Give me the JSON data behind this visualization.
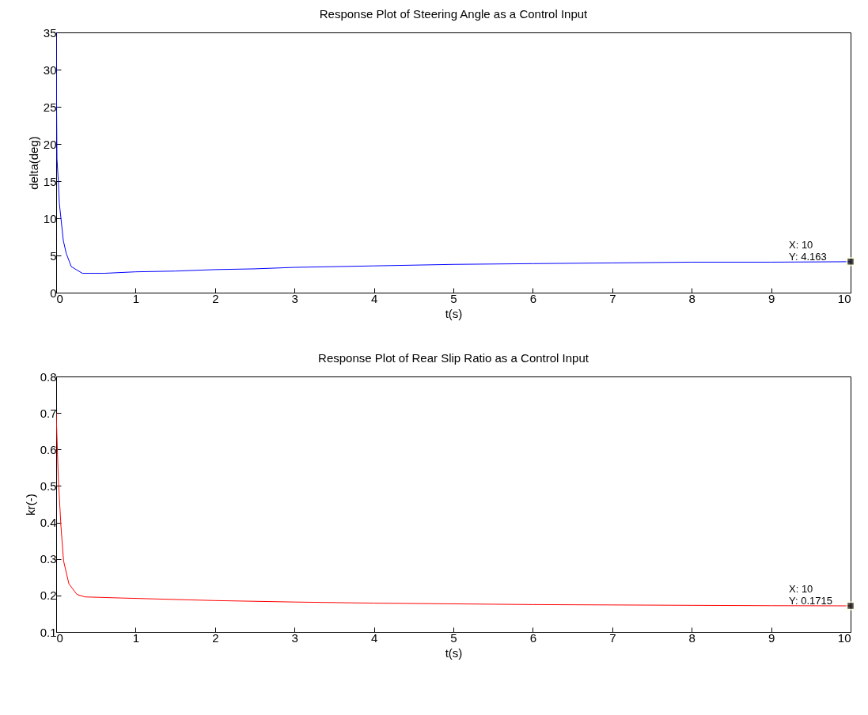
{
  "chart_data": [
    {
      "type": "line",
      "title": "Response Plot of Steering Angle as a Control Input",
      "xlabel": "t(s)",
      "ylabel": "delta(deg)",
      "x": [
        0,
        0.005,
        0.01,
        0.027,
        0.04,
        0.06,
        0.09,
        0.126,
        0.19,
        0.33,
        0.6,
        1,
        1.5,
        2,
        2.5,
        3,
        4,
        5,
        6,
        7,
        8,
        9,
        10
      ],
      "series": [
        {
          "color": "#0000ff",
          "values": [
            35,
            25,
            18,
            15,
            12,
            10,
            7,
            5.3,
            3.5,
            2.6,
            2.6,
            2.8,
            2.9,
            3.1,
            3.2,
            3.4,
            3.6,
            3.8,
            3.9,
            4.0,
            4.1,
            4.1,
            4.163
          ]
        }
      ],
      "xlim": [
        0,
        10
      ],
      "xticks": [
        0,
        1,
        2,
        3,
        4,
        5,
        6,
        7,
        8,
        9,
        10
      ],
      "ylim": [
        0,
        35
      ],
      "yticks": [
        0,
        5,
        10,
        15,
        20,
        25,
        30,
        35
      ],
      "annotations": [
        {
          "text": "X: 10\nY: 4.163",
          "x": 10,
          "y": 4.163
        }
      ],
      "grid": false
    },
    {
      "type": "line",
      "title": "Response Plot of Rear Slip Ratio as a Control Input",
      "xlabel": "t(s)",
      "ylabel": "kr(-)",
      "x": [
        0,
        0.027,
        0.06,
        0.093,
        0.16,
        0.26,
        0.36,
        0.82,
        2,
        3,
        4,
        5,
        6,
        7,
        8,
        9,
        10
      ],
      "series": [
        {
          "color": "#ff0000",
          "values": [
            0.7,
            0.52,
            0.39,
            0.295,
            0.232,
            0.203,
            0.196,
            0.193,
            0.186,
            0.182,
            0.179,
            0.177,
            0.175,
            0.174,
            0.173,
            0.172,
            0.1715
          ]
        }
      ],
      "xlim": [
        0,
        10
      ],
      "xticks": [
        0,
        1,
        2,
        3,
        4,
        5,
        6,
        7,
        8,
        9,
        10
      ],
      "ylim": [
        0.1,
        0.8
      ],
      "yticks": [
        0.1,
        0.2,
        0.3,
        0.4,
        0.5,
        0.6,
        0.7,
        0.8
      ],
      "annotations": [
        {
          "text": "X: 10\nY: 0.1715",
          "x": 10,
          "y": 0.1715
        }
      ],
      "grid": false
    }
  ]
}
